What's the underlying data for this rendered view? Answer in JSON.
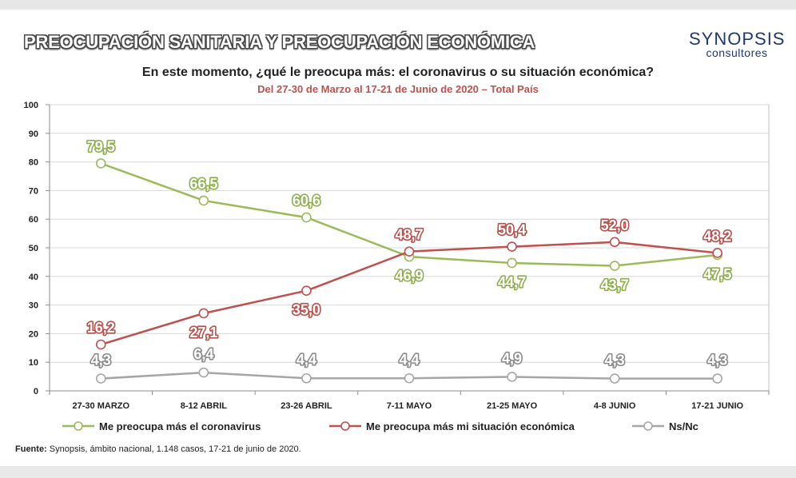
{
  "header": {
    "title": "PREOCUPACIÓN SANITARIA Y PREOCUPACIÓN ECONÓMICA",
    "logo_name": "SYNOPSIS",
    "logo_sub": "consultores"
  },
  "chart_data": {
    "type": "line",
    "title": "En este momento, ¿qué le preocupa más: el coronavirus o su situación económica?",
    "subtitle": "Del 27-30 de Marzo al 17-21 de Junio de 2020 – Total País",
    "categories": [
      "27-30 MARZO",
      "8-12 ABRIL",
      "23-26 ABRIL",
      "7-11 MAYO",
      "21-25 MAYO",
      "4-8 JUNIO",
      "17-21 JUNIO"
    ],
    "ylim": [
      0,
      100
    ],
    "yticks": [
      0,
      10,
      20,
      30,
      40,
      50,
      60,
      70,
      80,
      90,
      100
    ],
    "grid": true,
    "legend_position": "bottom",
    "series": [
      {
        "name": "Me preocupa más el coronavirus",
        "color": "#9bbb59",
        "label_color": "#8db04c",
        "values": [
          79.5,
          66.5,
          60.6,
          46.9,
          44.7,
          43.7,
          47.5
        ],
        "labels": [
          "79,5",
          "66,5",
          "60,6",
          "46,9",
          "44,7",
          "43,7",
          "47,5"
        ]
      },
      {
        "name": "Me preocupa más mi situación económica",
        "color": "#c0504d",
        "label_color": "#b9504c",
        "values": [
          16.2,
          27.1,
          35.0,
          48.7,
          50.4,
          52.0,
          48.2
        ],
        "labels": [
          "16,2",
          "27,1",
          "35,0",
          "48,7",
          "50,4",
          "52,0",
          "48,2"
        ]
      },
      {
        "name": "Ns/Nc",
        "color": "#a6a6a6",
        "label_color": "#8c8c8c",
        "values": [
          4.3,
          6.4,
          4.4,
          4.4,
          4.9,
          4.3,
          4.3
        ],
        "labels": [
          "4,3",
          "6,4",
          "4,4",
          "4,4",
          "4,9",
          "4,3",
          "4,3"
        ]
      }
    ]
  },
  "footer": {
    "source_label": "Fuente:",
    "source_text": " Synopsis, ámbito nacional, 1.148 casos, 17-21 de junio de 2020."
  }
}
